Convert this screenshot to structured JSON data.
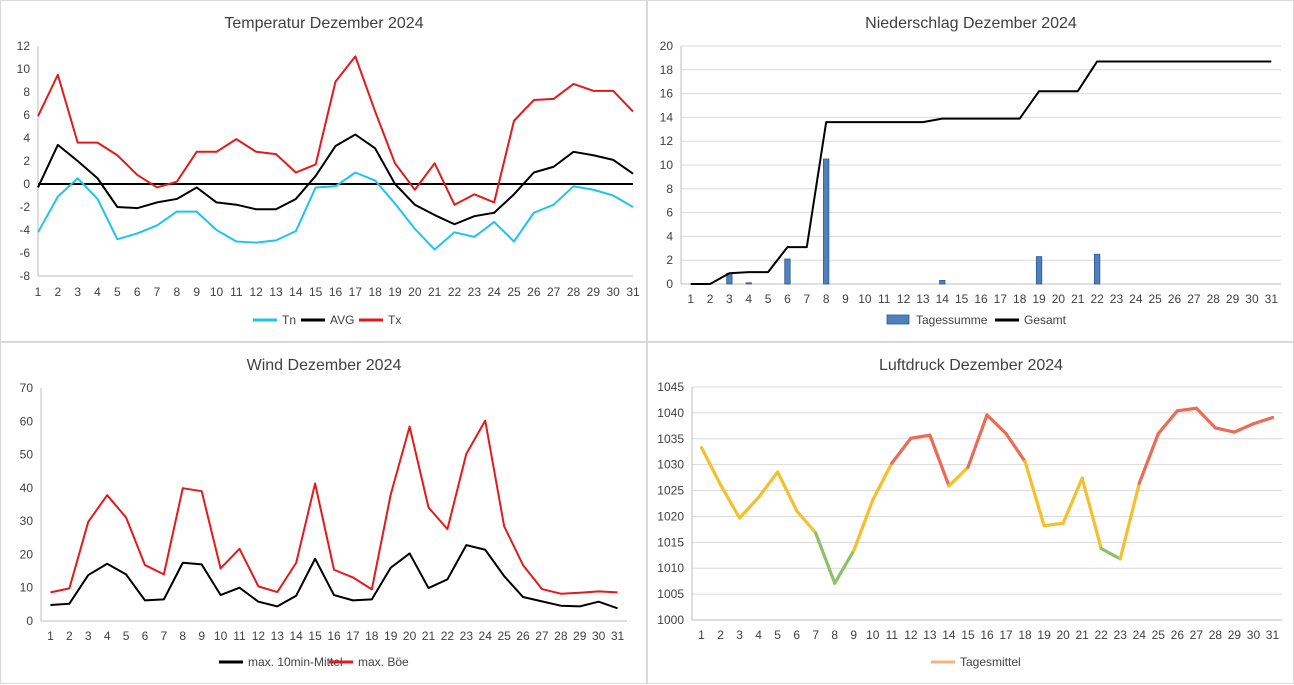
{
  "chart_data": [
    {
      "id": "temp",
      "type": "line",
      "title": "Temperatur Dezember 2024",
      "categories": [
        "1",
        "2",
        "3",
        "4",
        "5",
        "6",
        "7",
        "8",
        "9",
        "10",
        "11",
        "12",
        "13",
        "14",
        "15",
        "16",
        "17",
        "18",
        "19",
        "20",
        "21",
        "22",
        "23",
        "24",
        "25",
        "26",
        "27",
        "28",
        "29",
        "30",
        "31"
      ],
      "ylim": [
        -8,
        12
      ],
      "yticks": [
        -8,
        -6,
        -4,
        -2,
        0,
        2,
        4,
        6,
        8,
        10,
        12
      ],
      "zero_line": true,
      "series": [
        {
          "name": "Tn",
          "color": "#1fc4ee",
          "values": [
            -4.2,
            -1.1,
            0.5,
            -1.3,
            -4.8,
            -4.3,
            -3.6,
            -2.4,
            -2.4,
            -4.0,
            -5.0,
            -5.1,
            -4.9,
            -4.1,
            -0.3,
            -0.2,
            1.0,
            0.3,
            -1.7,
            -3.9,
            -5.7,
            -4.2,
            -4.6,
            -3.3,
            -5.0,
            -2.5,
            -1.8,
            -0.2,
            -0.5,
            -1.0,
            -2.0
          ]
        },
        {
          "name": "AVG",
          "color": "#000000",
          "values": [
            -0.3,
            3.4,
            2.0,
            0.5,
            -2.0,
            -2.1,
            -1.6,
            -1.3,
            -0.3,
            -1.6,
            -1.8,
            -2.2,
            -2.2,
            -1.3,
            0.7,
            3.3,
            4.3,
            3.1,
            0.0,
            -1.8,
            -2.7,
            -3.5,
            -2.8,
            -2.5,
            -0.9,
            1.0,
            1.5,
            2.8,
            2.5,
            2.1,
            0.9
          ]
        },
        {
          "name": "Tx",
          "color": "#e31a1c",
          "values": [
            5.9,
            9.5,
            3.6,
            3.6,
            2.5,
            0.8,
            -0.3,
            0.2,
            2.8,
            2.8,
            3.9,
            2.8,
            2.6,
            1.0,
            1.7,
            8.9,
            11.1,
            6.3,
            1.8,
            -0.5,
            1.8,
            -1.8,
            -0.9,
            -1.6,
            5.5,
            7.3,
            7.4,
            8.7,
            8.1,
            8.1,
            6.3
          ]
        }
      ]
    },
    {
      "id": "prec",
      "type": "bar+line",
      "title": "Niederschlag Dezember 2024",
      "categories": [
        "1",
        "2",
        "3",
        "4",
        "5",
        "6",
        "7",
        "8",
        "9",
        "10",
        "11",
        "12",
        "13",
        "14",
        "15",
        "16",
        "17",
        "18",
        "19",
        "20",
        "21",
        "22",
        "23",
        "24",
        "25",
        "26",
        "27",
        "28",
        "29",
        "30",
        "31"
      ],
      "ylim": [
        0,
        20
      ],
      "yticks": [
        0,
        2,
        4,
        6,
        8,
        10,
        12,
        14,
        16,
        18,
        20
      ],
      "series": [
        {
          "name": "Tagessumme",
          "color": "#4f81bd",
          "kind": "bar",
          "values": [
            0,
            0,
            0.9,
            0.1,
            0,
            2.1,
            0,
            10.5,
            0,
            0,
            0,
            0,
            0,
            0.3,
            0,
            0,
            0,
            0,
            2.3,
            0,
            0,
            2.5,
            0,
            0,
            0,
            0,
            0,
            0,
            0,
            0,
            0
          ]
        },
        {
          "name": "Gesamt",
          "color": "#000000",
          "kind": "line",
          "values": [
            0,
            0,
            0.9,
            1.0,
            1.0,
            3.1,
            3.1,
            13.6,
            13.6,
            13.6,
            13.6,
            13.6,
            13.6,
            13.9,
            13.9,
            13.9,
            13.9,
            13.9,
            16.2,
            16.2,
            16.2,
            18.7,
            18.7,
            18.7,
            18.7,
            18.7,
            18.7,
            18.7,
            18.7,
            18.7,
            18.7
          ]
        }
      ]
    },
    {
      "id": "wind",
      "type": "line",
      "title": "Wind Dezember 2024",
      "categories": [
        "1",
        "2",
        "3",
        "4",
        "5",
        "6",
        "7",
        "8",
        "9",
        "10",
        "11",
        "12",
        "13",
        "14",
        "15",
        "16",
        "17",
        "18",
        "19",
        "20",
        "21",
        "22",
        "23",
        "24",
        "25",
        "26",
        "27",
        "28",
        "29",
        "30",
        "31"
      ],
      "ylim": [
        0,
        70
      ],
      "yticks": [
        0,
        10,
        20,
        30,
        40,
        50,
        60,
        70
      ],
      "series": [
        {
          "name": "max. 10min-Mittel",
          "color": "#000000",
          "values": [
            4.8,
            5.2,
            13.8,
            17.2,
            14.0,
            6.2,
            6.5,
            17.5,
            17.0,
            7.8,
            10.0,
            5.8,
            4.4,
            7.6,
            18.7,
            7.8,
            6.2,
            6.5,
            16.0,
            20.3,
            9.9,
            12.5,
            22.8,
            21.4,
            13.5,
            7.2,
            5.9,
            4.6,
            4.4,
            5.8,
            3.8
          ]
        },
        {
          "name": "max. Böe",
          "color": "#e31a1c",
          "values": [
            8.6,
            9.8,
            29.8,
            37.8,
            31.1,
            16.8,
            14.0,
            39.9,
            39.0,
            15.8,
            21.7,
            10.4,
            8.7,
            17.5,
            41.3,
            15.4,
            13.1,
            9.5,
            38.0,
            58.4,
            34.1,
            27.6,
            50.2,
            60.2,
            28.5,
            16.8,
            9.6,
            8.2,
            8.5,
            8.9,
            8.6
          ]
        }
      ]
    },
    {
      "id": "pres",
      "type": "line",
      "title": "Luftdruck Dezember 2024",
      "categories": [
        "1",
        "2",
        "3",
        "4",
        "5",
        "6",
        "7",
        "8",
        "9",
        "10",
        "11",
        "12",
        "13",
        "14",
        "15",
        "16",
        "17",
        "18",
        "19",
        "20",
        "21",
        "22",
        "23",
        "24",
        "25",
        "26",
        "27",
        "28",
        "29",
        "30",
        "31"
      ],
      "ylim": [
        1000,
        1045
      ],
      "yticks": [
        1000,
        1005,
        1010,
        1015,
        1020,
        1025,
        1030,
        1035,
        1040,
        1045
      ],
      "series": [
        {
          "name": "Tagesmittel",
          "color": "#f4b183",
          "values": [
            1033.3,
            1026.1,
            1019.7,
            1023.7,
            1028.6,
            1021.1,
            1016.8,
            1007.1,
            1013.4,
            1023.2,
            1030.3,
            1035.1,
            1035.7,
            1025.9,
            1029.5,
            1039.6,
            1036.0,
            1030.6,
            1018.2,
            1018.7,
            1027.4,
            1013.8,
            1011.8,
            1026.4,
            1036.0,
            1040.4,
            1040.9,
            1037.1,
            1036.3,
            1037.9,
            1039.1
          ]
        }
      ],
      "color_bands": [
        {
          "min": 1030,
          "color": "#ec6b56"
        },
        {
          "min": 1018,
          "color": "#f5c02c"
        },
        {
          "min": 1010,
          "color": "#8cc168"
        },
        {
          "min": 0,
          "color": "#9ec3e6"
        }
      ]
    }
  ]
}
